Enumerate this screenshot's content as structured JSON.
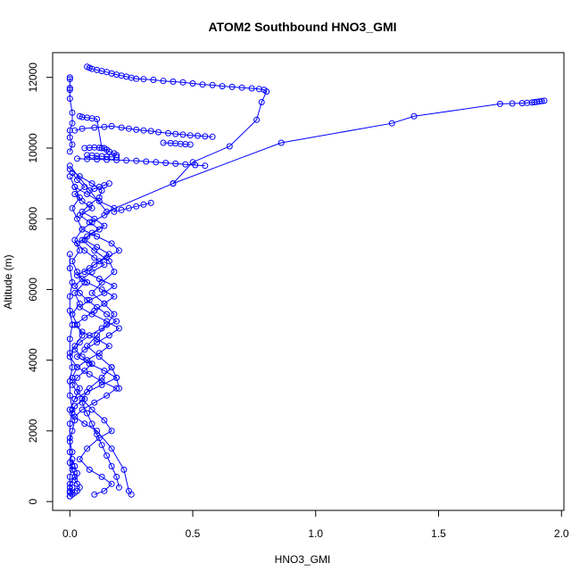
{
  "chart_data": {
    "type": "scatter",
    "title": "ATOM2 Southbound HNO3_GMI",
    "xlabel": "HNO3_GMI",
    "ylabel": "Altitude (m)",
    "xlim": [
      -0.07,
      2.01
    ],
    "ylim": [
      -250,
      12700
    ],
    "xticks": [
      0.0,
      0.5,
      1.0,
      1.5,
      2.0
    ],
    "xtick_labels": [
      "0.0",
      "0.5",
      "1.0",
      "1.5",
      "2.0"
    ],
    "yticks": [
      0,
      2000,
      4000,
      6000,
      8000,
      10000,
      12000
    ],
    "ytick_labels": [
      "0",
      "2000",
      "4000",
      "6000",
      "8000",
      "10000",
      "12000"
    ],
    "grid": false,
    "legend": "none",
    "color": "#0000ff",
    "marker": "open-circle",
    "series": [
      {
        "x": [
          0.0,
          0.0,
          0.0,
          0.0,
          0.0,
          0.01,
          0.01,
          0.0,
          0.0,
          0.01,
          0.0
        ],
        "y": [
          12000,
          11950,
          11700,
          11650,
          11400,
          11000,
          10700,
          10500,
          10300,
          10100,
          9900
        ]
      },
      {
        "x": [
          0.07,
          0.08,
          0.09,
          0.11,
          0.13,
          0.15,
          0.17,
          0.19,
          0.21,
          0.23,
          0.25,
          0.27,
          0.3,
          0.34,
          0.38,
          0.42,
          0.46,
          0.5,
          0.54,
          0.58,
          0.62,
          0.66,
          0.7,
          0.74,
          0.77,
          0.79,
          0.8,
          0.78,
          0.76,
          0.65,
          0.5,
          0.42
        ],
        "y": [
          12300,
          12270,
          12240,
          12210,
          12180,
          12150,
          12110,
          12080,
          12050,
          12020,
          11990,
          11960,
          11950,
          11930,
          11900,
          11880,
          11860,
          11830,
          11800,
          11780,
          11750,
          11730,
          11710,
          11690,
          11670,
          11650,
          11600,
          11300,
          10800,
          10050,
          9600,
          9000
        ]
      },
      {
        "x": [
          0.0,
          0.15,
          0.42,
          0.86,
          1.31,
          1.4,
          1.75,
          1.8,
          1.84,
          1.86,
          1.88,
          1.89,
          1.9,
          1.91,
          1.92,
          1.93
        ],
        "y": [
          9500,
          8200,
          9000,
          10150,
          10700,
          10900,
          11250,
          11260,
          11270,
          11280,
          11290,
          11300,
          11310,
          11320,
          11330,
          11340
        ]
      },
      {
        "x": [
          0.02,
          0.05,
          0.1,
          0.14,
          0.17,
          0.21,
          0.24,
          0.27,
          0.3,
          0.33,
          0.36,
          0.4,
          0.43,
          0.46,
          0.49,
          0.52,
          0.55,
          0.58
        ],
        "y": [
          10500,
          10550,
          10580,
          10600,
          10620,
          10580,
          10550,
          10520,
          10500,
          10480,
          10450,
          10420,
          10400,
          10380,
          10360,
          10350,
          10330,
          10320
        ]
      },
      {
        "x": [
          0.03,
          0.07,
          0.11,
          0.15,
          0.19,
          0.23,
          0.27,
          0.31,
          0.35,
          0.39,
          0.43,
          0.47,
          0.51,
          0.55
        ],
        "y": [
          9700,
          9690,
          9680,
          9670,
          9660,
          9650,
          9640,
          9620,
          9600,
          9580,
          9560,
          9540,
          9520,
          9500
        ]
      },
      {
        "x": [
          0.38,
          0.41,
          0.43,
          0.45,
          0.47,
          0.49
        ],
        "y": [
          10150,
          10140,
          10130,
          10120,
          10110,
          10100
        ]
      },
      {
        "x": [
          0.04,
          0.05,
          0.07,
          0.09,
          0.11,
          0.13,
          0.15,
          0.16,
          0.18,
          0.19
        ],
        "y": [
          10900,
          10880,
          10860,
          10840,
          10820,
          10000,
          9950,
          9900,
          9850,
          9800
        ]
      },
      {
        "x": [
          0.0,
          0.04,
          0.09,
          0.13,
          0.12,
          0.08,
          0.05,
          0.1,
          0.14,
          0.09,
          0.06,
          0.11,
          0.16,
          0.12,
          0.08,
          0.03,
          0.07,
          0.13,
          0.18,
          0.14,
          0.1,
          0.06,
          0.02,
          0.05,
          0.11,
          0.16,
          0.12,
          0.07,
          0.03,
          0.08,
          0.13,
          0.19,
          0.15,
          0.1,
          0.05,
          0.02,
          0.06,
          0.11,
          0.17,
          0.22,
          0.24,
          0.25
        ],
        "y": [
          9400,
          9200,
          9000,
          8800,
          8600,
          8400,
          8200,
          8000,
          7800,
          7600,
          7400,
          7200,
          7000,
          6800,
          6600,
          6400,
          6200,
          6000,
          5800,
          5600,
          5400,
          5200,
          5000,
          4800,
          4600,
          4400,
          4200,
          4000,
          3800,
          3600,
          3400,
          3200,
          3000,
          2800,
          2600,
          2400,
          2200,
          2000,
          1500,
          900,
          300,
          200
        ]
      },
      {
        "x": [
          0.01,
          0.03,
          0.06,
          0.02,
          0.05,
          0.09,
          0.04,
          0.08,
          0.12,
          0.07,
          0.03,
          0.06,
          0.1,
          0.14,
          0.09,
          0.05,
          0.02,
          0.04,
          0.07,
          0.11,
          0.15,
          0.19,
          0.13,
          0.08,
          0.04,
          0.02,
          0.05,
          0.09,
          0.06,
          0.03,
          0.01,
          0.03,
          0.06,
          0.02,
          0.01
        ],
        "y": [
          9300,
          9100,
          8900,
          8700,
          8500,
          8300,
          8100,
          7900,
          7700,
          7500,
          7300,
          7100,
          6900,
          6700,
          6500,
          6300,
          6100,
          5900,
          5700,
          5500,
          5300,
          5100,
          4900,
          4700,
          4500,
          4300,
          4100,
          3900,
          3700,
          3500,
          3300,
          3100,
          2900,
          2700,
          2500
        ]
      },
      {
        "x": [
          0.02,
          0.07,
          0.12,
          0.18,
          0.14,
          0.09,
          0.05,
          0.11,
          0.17,
          0.2,
          0.15,
          0.1,
          0.06,
          0.12,
          0.18,
          0.14,
          0.08,
          0.04,
          0.09,
          0.15,
          0.2,
          0.16,
          0.11,
          0.06,
          0.03,
          0.08,
          0.14,
          0.19,
          0.13,
          0.07,
          0.02
        ],
        "y": [
          8900,
          8700,
          8500,
          8300,
          8100,
          7900,
          7700,
          7500,
          7300,
          7100,
          6900,
          6700,
          6500,
          6300,
          6100,
          5900,
          5700,
          5500,
          5300,
          5100,
          4900,
          4700,
          4500,
          4300,
          4100,
          3900,
          3700,
          3500,
          3300,
          3100,
          2900
        ]
      },
      {
        "x": [
          0.0,
          0.02,
          0.04,
          0.01,
          0.03,
          0.05,
          0.02,
          0.04,
          0.01,
          0.03,
          0.06,
          0.02,
          0.04,
          0.01,
          0.03,
          0.05,
          0.02,
          0.0,
          0.03,
          0.01,
          0.04,
          0.02,
          0.0,
          0.02,
          0.01,
          0.0,
          0.01,
          0.0,
          0.01,
          0.02,
          0.0,
          0.01,
          0.0,
          0.02,
          0.01,
          0.0
        ],
        "y": [
          9200,
          8900,
          8600,
          8300,
          8000,
          7700,
          7400,
          7100,
          6800,
          6500,
          6200,
          5900,
          5600,
          5300,
          5000,
          4700,
          4400,
          4100,
          3800,
          3500,
          3200,
          2900,
          2600,
          2300,
          2000,
          1700,
          1400,
          1100,
          900,
          700,
          500,
          400,
          300,
          250,
          200,
          150
        ]
      },
      {
        "x": [
          0.05,
          0.1,
          0.16,
          0.18,
          0.13,
          0.09,
          0.14,
          0.18,
          0.15,
          0.11,
          0.07,
          0.12,
          0.17,
          0.13,
          0.08,
          0.05,
          0.09,
          0.14,
          0.17,
          0.12,
          0.07,
          0.04,
          0.08,
          0.13,
          0.17,
          0.14,
          0.1
        ],
        "y": [
          7400,
          7100,
          6800,
          6500,
          6200,
          5900,
          5600,
          5300,
          5000,
          4700,
          4400,
          4100,
          3800,
          3500,
          3200,
          2900,
          2600,
          2300,
          2000,
          1800,
          1500,
          1200,
          900,
          700,
          500,
          300,
          200
        ]
      },
      {
        "x": [
          0.0,
          0.0,
          0.01,
          0.0,
          0.0,
          0.01,
          0.0,
          0.0,
          0.01,
          0.0,
          0.0,
          0.01,
          0.0,
          0.0,
          0.0,
          0.01,
          0.0,
          0.0,
          0.0,
          0.0
        ],
        "y": [
          7000,
          6600,
          6200,
          5800,
          5400,
          5000,
          4600,
          4200,
          3800,
          3400,
          3000,
          2600,
          2200,
          1800,
          1400,
          1000,
          700,
          400,
          250,
          150
        ]
      },
      {
        "x": [
          0.18,
          0.21,
          0.24,
          0.27,
          0.3,
          0.33
        ],
        "y": [
          8200,
          8250,
          8300,
          8350,
          8400,
          8450
        ]
      },
      {
        "x": [
          0.06,
          0.08,
          0.1,
          0.12,
          0.14
        ],
        "y": [
          10000,
          10010,
          10020,
          10010,
          10000
        ]
      },
      {
        "x": [
          0.07,
          0.09,
          0.11,
          0.13,
          0.15,
          0.17,
          0.19
        ],
        "y": [
          9800,
          9790,
          9780,
          9770,
          9760,
          9750,
          9740
        ]
      },
      {
        "x": [
          0.08,
          0.1,
          0.12,
          0.14,
          0.16
        ],
        "y": [
          8800,
          8850,
          8900,
          8950,
          9000
        ]
      },
      {
        "x": [
          0.01,
          0.02,
          0.03,
          0.02,
          0.03,
          0.04,
          0.03
        ],
        "y": [
          1200,
          1000,
          800,
          600,
          500,
          400,
          300
        ]
      },
      {
        "x": [
          0.05,
          0.07,
          0.09,
          0.11,
          0.13,
          0.15,
          0.17,
          0.19,
          0.2
        ],
        "y": [
          2800,
          2500,
          2200,
          1900,
          1600,
          1300,
          1000,
          700,
          400
        ]
      },
      {
        "x": [
          0.17,
          0.19,
          0.2
        ],
        "y": [
          3800,
          3500,
          3200
        ]
      }
    ]
  }
}
